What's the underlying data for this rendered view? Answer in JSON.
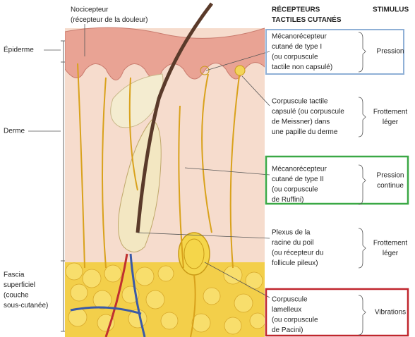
{
  "labels": {
    "nociceptor": [
      "Nocicepteur",
      "(récepteur de la douleur)"
    ],
    "epidermis": "Épiderme",
    "dermis": "Derme",
    "fascia": [
      "Fascia",
      "superficiel",
      "(couche",
      "sous-cutanée)"
    ]
  },
  "header": {
    "receptors": [
      "RÉCEPTEURS",
      "TACTILES CUTANÉS"
    ],
    "stimulus": "STIMULUS"
  },
  "receptors": [
    {
      "lines": [
        "Mécanorécepteur",
        "cutané de type I",
        "(ou corpuscule",
        "tactile non capsulé)"
      ],
      "stimulus": [
        "Pression"
      ]
    },
    {
      "lines": [
        "Corpuscule tactile",
        "capsulé (ou corpuscule",
        "de Meissner) dans",
        "une papille du derme"
      ],
      "stimulus": [
        "Frottement",
        "léger"
      ]
    },
    {
      "lines": [
        "Mécanorécepteur",
        "cutané de type II",
        "(ou corpuscule",
        "de Ruffini)"
      ],
      "stimulus": [
        "Pression",
        "continue"
      ]
    },
    {
      "lines": [
        "Plexus de la",
        "racine du poil",
        "(ou récepteur du",
        "follicule pileux)"
      ],
      "stimulus": [
        "Frottement",
        "léger"
      ]
    },
    {
      "lines": [
        "Corpuscule",
        "lamelleux",
        "(ou corpuscule",
        "de Pacini)"
      ],
      "stimulus": [
        "Vibrations"
      ]
    }
  ]
}
